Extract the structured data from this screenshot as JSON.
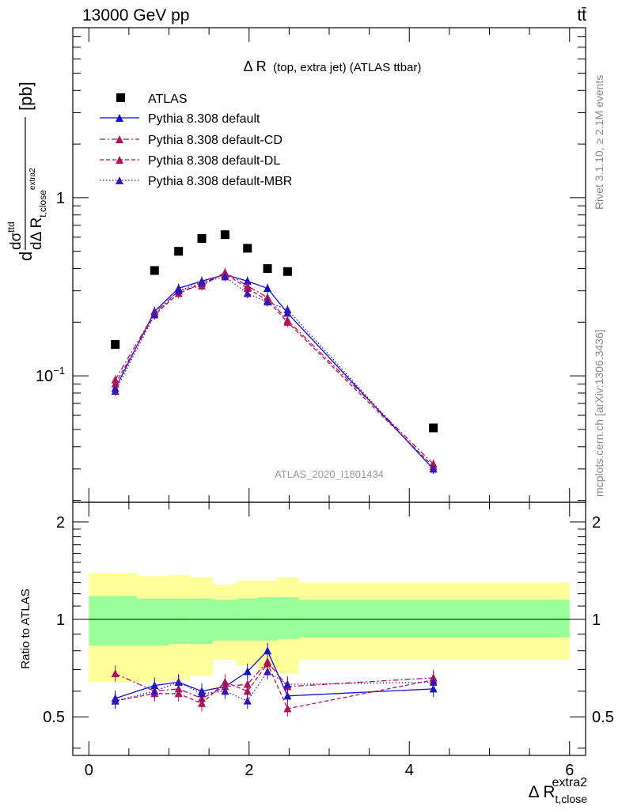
{
  "header": {
    "left": "13000 GeV pp",
    "right": "tt̄"
  },
  "side_labels": {
    "rivet": "Rivet 3.1.10, ≥ 2.1M events",
    "mcplots": "mcplots.cern.ch [arXiv:1306.3436]"
  },
  "main_plot": {
    "title_main": "Δ R",
    "title_rest": "(top, extra jet) (ATLAS ttbar)",
    "watermark": "ATLAS_2020_I1801434",
    "ylabel": {
      "prefix": "d",
      "num_d": "dσ",
      "num_sup": "ttd",
      "den_d": "dΔ R",
      "den_sub": "t,close",
      "den_sup": "extra2",
      "unit": "[pb]"
    },
    "yticks": [
      {
        "value": 1,
        "label": "1"
      },
      {
        "value": 0.1,
        "label": "10",
        "exp": "−1"
      }
    ]
  },
  "ratio_plot": {
    "ylabel": "Ratio to ATLAS",
    "yticks": [
      {
        "value": 0.5,
        "label": "0.5"
      },
      {
        "value": 1,
        "label": "1"
      },
      {
        "value": 2,
        "label": "2"
      }
    ]
  },
  "xaxis": {
    "label_main": "Δ R",
    "label_sub": "t,close",
    "label_sup": "extra2",
    "ticks": [
      {
        "value": 0,
        "label": "0"
      },
      {
        "value": 2,
        "label": "2"
      },
      {
        "value": 4,
        "label": "4"
      },
      {
        "value": 6,
        "label": "6"
      }
    ]
  },
  "colors": {
    "data": "#000000",
    "default": "#1010d0",
    "cd": "#b0145a",
    "dl": "#b0145a",
    "mbr": "#3a14b0",
    "band_inner": "#99ff99",
    "band_outer": "#ffff99"
  },
  "chart_data": {
    "type": "line",
    "x_range": [
      -0.2,
      6.2
    ],
    "main_y_range": [
      0.0195,
      9.0
    ],
    "main_y_scale": "log",
    "ratio_y_range": [
      0.38,
      2.3
    ],
    "ratio_y_scale": "log",
    "legend_position": "top-left",
    "bins": [
      [
        0.0,
        0.6
      ],
      [
        0.6,
        1.0
      ],
      [
        1.0,
        1.26
      ],
      [
        1.26,
        1.55
      ],
      [
        1.55,
        1.84
      ],
      [
        1.84,
        2.1
      ],
      [
        2.1,
        2.36
      ],
      [
        2.36,
        2.62
      ],
      [
        2.62,
        6.0
      ]
    ],
    "x": [
      0.33,
      0.82,
      1.12,
      1.41,
      1.7,
      1.98,
      2.23,
      2.48,
      4.3
    ],
    "data": {
      "name": "ATLAS",
      "values": [
        0.15,
        0.39,
        0.5,
        0.59,
        0.62,
        0.52,
        0.4,
        0.385,
        0.051
      ]
    },
    "band_inner": [
      [
        0.83,
        1.18
      ],
      [
        0.83,
        1.16
      ],
      [
        0.84,
        1.16
      ],
      [
        0.84,
        1.16
      ],
      [
        0.86,
        1.15
      ],
      [
        0.86,
        1.16
      ],
      [
        0.86,
        1.17
      ],
      [
        0.87,
        1.17
      ],
      [
        0.88,
        1.15
      ]
    ],
    "band_outer": [
      [
        0.64,
        1.39
      ],
      [
        0.64,
        1.36
      ],
      [
        0.65,
        1.37
      ],
      [
        0.67,
        1.35
      ],
      [
        0.75,
        1.28
      ],
      [
        0.72,
        1.32
      ],
      [
        0.7,
        1.32
      ],
      [
        0.68,
        1.35
      ],
      [
        0.75,
        1.3
      ]
    ],
    "series": [
      {
        "name": "Pythia 8.308 default",
        "style": "solid",
        "values": [
          0.085,
          0.23,
          0.31,
          0.34,
          0.37,
          0.34,
          0.31,
          0.225,
          0.03
        ],
        "ratio": [
          0.57,
          0.625,
          0.64,
          0.6,
          0.62,
          0.69,
          0.8,
          0.58,
          0.61
        ]
      },
      {
        "name": "Pythia 8.308 default-CD",
        "style": "dashdot",
        "values": [
          0.095,
          0.225,
          0.3,
          0.32,
          0.38,
          0.32,
          0.275,
          0.205,
          0.032
        ],
        "ratio": [
          0.68,
          0.6,
          0.61,
          0.57,
          0.62,
          0.63,
          0.74,
          0.62,
          0.66
        ]
      },
      {
        "name": "Pythia 8.308 default-DL",
        "style": "dashed",
        "values": [
          0.09,
          0.22,
          0.29,
          0.33,
          0.375,
          0.31,
          0.265,
          0.2,
          0.031
        ],
        "ratio": [
          0.56,
          0.59,
          0.59,
          0.55,
          0.64,
          0.6,
          0.73,
          0.53,
          0.65
        ]
      },
      {
        "name": "Pythia 8.308 default-MBR",
        "style": "dotted",
        "values": [
          0.082,
          0.22,
          0.3,
          0.335,
          0.36,
          0.29,
          0.26,
          0.235,
          0.03
        ],
        "ratio": [
          0.56,
          0.6,
          0.64,
          0.59,
          0.6,
          0.56,
          0.69,
          0.63,
          0.64
        ]
      }
    ]
  }
}
